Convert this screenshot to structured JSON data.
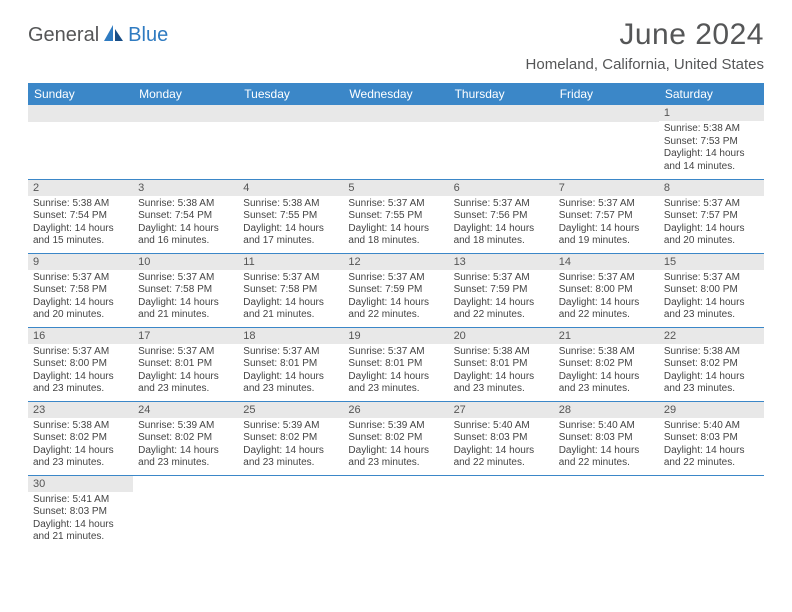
{
  "brand": {
    "part1": "General",
    "part2": "Blue"
  },
  "title": "June 2024",
  "location": "Homeland, California, United States",
  "header_bg": "#3b87c8",
  "header_fg": "#ffffff",
  "border_color": "#3b87c8",
  "daynum_bg": "#e8e8e8",
  "text_color": "#444444",
  "days": [
    "Sunday",
    "Monday",
    "Tuesday",
    "Wednesday",
    "Thursday",
    "Friday",
    "Saturday"
  ],
  "weeks": [
    [
      null,
      null,
      null,
      null,
      null,
      null,
      {
        "n": "1",
        "sr": "5:38 AM",
        "ss": "7:53 PM",
        "dl": "14 hours and 14 minutes."
      }
    ],
    [
      {
        "n": "2",
        "sr": "5:38 AM",
        "ss": "7:54 PM",
        "dl": "14 hours and 15 minutes."
      },
      {
        "n": "3",
        "sr": "5:38 AM",
        "ss": "7:54 PM",
        "dl": "14 hours and 16 minutes."
      },
      {
        "n": "4",
        "sr": "5:38 AM",
        "ss": "7:55 PM",
        "dl": "14 hours and 17 minutes."
      },
      {
        "n": "5",
        "sr": "5:37 AM",
        "ss": "7:55 PM",
        "dl": "14 hours and 18 minutes."
      },
      {
        "n": "6",
        "sr": "5:37 AM",
        "ss": "7:56 PM",
        "dl": "14 hours and 18 minutes."
      },
      {
        "n": "7",
        "sr": "5:37 AM",
        "ss": "7:57 PM",
        "dl": "14 hours and 19 minutes."
      },
      {
        "n": "8",
        "sr": "5:37 AM",
        "ss": "7:57 PM",
        "dl": "14 hours and 20 minutes."
      }
    ],
    [
      {
        "n": "9",
        "sr": "5:37 AM",
        "ss": "7:58 PM",
        "dl": "14 hours and 20 minutes."
      },
      {
        "n": "10",
        "sr": "5:37 AM",
        "ss": "7:58 PM",
        "dl": "14 hours and 21 minutes."
      },
      {
        "n": "11",
        "sr": "5:37 AM",
        "ss": "7:58 PM",
        "dl": "14 hours and 21 minutes."
      },
      {
        "n": "12",
        "sr": "5:37 AM",
        "ss": "7:59 PM",
        "dl": "14 hours and 22 minutes."
      },
      {
        "n": "13",
        "sr": "5:37 AM",
        "ss": "7:59 PM",
        "dl": "14 hours and 22 minutes."
      },
      {
        "n": "14",
        "sr": "5:37 AM",
        "ss": "8:00 PM",
        "dl": "14 hours and 22 minutes."
      },
      {
        "n": "15",
        "sr": "5:37 AM",
        "ss": "8:00 PM",
        "dl": "14 hours and 23 minutes."
      }
    ],
    [
      {
        "n": "16",
        "sr": "5:37 AM",
        "ss": "8:00 PM",
        "dl": "14 hours and 23 minutes."
      },
      {
        "n": "17",
        "sr": "5:37 AM",
        "ss": "8:01 PM",
        "dl": "14 hours and 23 minutes."
      },
      {
        "n": "18",
        "sr": "5:37 AM",
        "ss": "8:01 PM",
        "dl": "14 hours and 23 minutes."
      },
      {
        "n": "19",
        "sr": "5:37 AM",
        "ss": "8:01 PM",
        "dl": "14 hours and 23 minutes."
      },
      {
        "n": "20",
        "sr": "5:38 AM",
        "ss": "8:01 PM",
        "dl": "14 hours and 23 minutes."
      },
      {
        "n": "21",
        "sr": "5:38 AM",
        "ss": "8:02 PM",
        "dl": "14 hours and 23 minutes."
      },
      {
        "n": "22",
        "sr": "5:38 AM",
        "ss": "8:02 PM",
        "dl": "14 hours and 23 minutes."
      }
    ],
    [
      {
        "n": "23",
        "sr": "5:38 AM",
        "ss": "8:02 PM",
        "dl": "14 hours and 23 minutes."
      },
      {
        "n": "24",
        "sr": "5:39 AM",
        "ss": "8:02 PM",
        "dl": "14 hours and 23 minutes."
      },
      {
        "n": "25",
        "sr": "5:39 AM",
        "ss": "8:02 PM",
        "dl": "14 hours and 23 minutes."
      },
      {
        "n": "26",
        "sr": "5:39 AM",
        "ss": "8:02 PM",
        "dl": "14 hours and 23 minutes."
      },
      {
        "n": "27",
        "sr": "5:40 AM",
        "ss": "8:03 PM",
        "dl": "14 hours and 22 minutes."
      },
      {
        "n": "28",
        "sr": "5:40 AM",
        "ss": "8:03 PM",
        "dl": "14 hours and 22 minutes."
      },
      {
        "n": "29",
        "sr": "5:40 AM",
        "ss": "8:03 PM",
        "dl": "14 hours and 22 minutes."
      }
    ],
    [
      {
        "n": "30",
        "sr": "5:41 AM",
        "ss": "8:03 PM",
        "dl": "14 hours and 21 minutes."
      },
      null,
      null,
      null,
      null,
      null,
      null
    ]
  ],
  "labels": {
    "sunrise": "Sunrise:",
    "sunset": "Sunset:",
    "daylight": "Daylight:"
  }
}
